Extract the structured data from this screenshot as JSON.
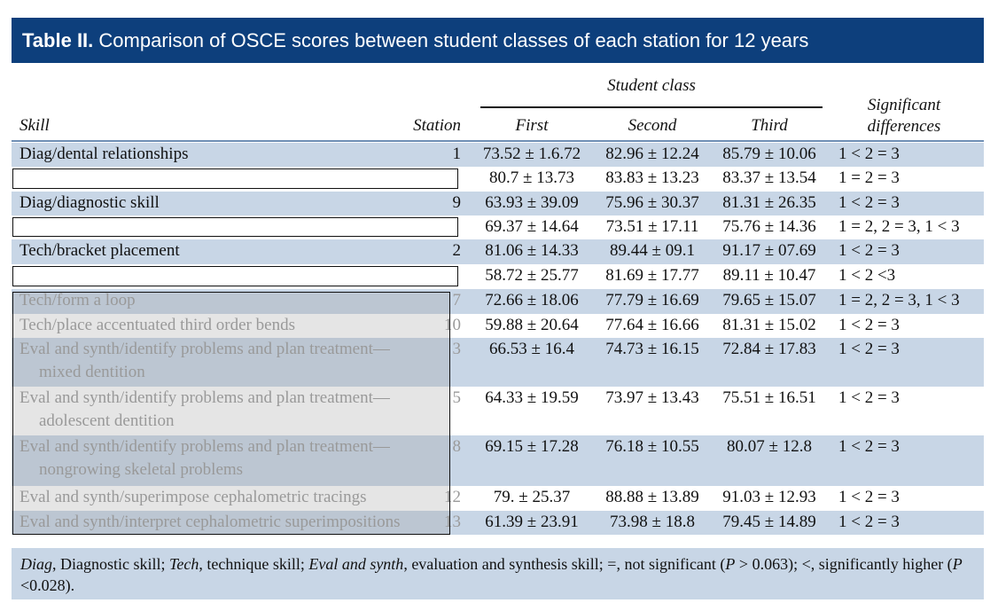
{
  "title": {
    "label": "Table II.",
    "text": "Comparison of OSCE scores between student classes of each station for 12 years"
  },
  "table": {
    "group_header": "Student class",
    "columns": [
      "Skill",
      "Station",
      "First",
      "Second",
      "Third",
      "Significant differences"
    ],
    "rows": [
      [
        "Diag/dental relationships",
        "1",
        "73.52 ± 1.6.72",
        "82.96 ± 12.24",
        "85.79 ± 10.06",
        "1 < 2 = 3"
      ],
      [
        null,
        null,
        "80.7 ± 13.73",
        "83.83 ± 13.23",
        "83.37 ± 13.54",
        "1 = 2 = 3"
      ],
      [
        "Diag/diagnostic skill",
        "9",
        "63.93 ± 39.09",
        "75.96 ± 30.37",
        "81.31 ± 26.35",
        "1 < 2 = 3"
      ],
      [
        null,
        null,
        "69.37 ± 14.64",
        "73.51 ± 17.11",
        "75.76 ± 14.36",
        "1 = 2, 2 = 3, 1 < 3"
      ],
      [
        "Tech/bracket placement",
        "2",
        "81.06 ± 14.33",
        "89.44 ± 09.1",
        "91.17 ± 07.69",
        "1 < 2 = 3"
      ],
      [
        null,
        null,
        "58.72 ± 25.77",
        "81.69 ± 17.77",
        "89.11 ± 10.47",
        "1 < 2 <3"
      ],
      [
        "Tech/form a loop",
        "7",
        "72.66 ± 18.06",
        "77.79 ± 16.69",
        "79.65 ± 15.07",
        "1 = 2, 2 = 3, 1 < 3"
      ],
      [
        "Tech/place accentuated third order bends",
        "10",
        "59.88 ± 20.64",
        "77.64 ± 16.66",
        "81.31 ± 15.02",
        "1 < 2 = 3"
      ],
      [
        "Eval and synth/identify problems and plan treatment—mixed dentition",
        "3",
        "66.53 ± 16.4",
        "74.73 ± 16.15",
        "72.84 ± 17.83",
        "1 < 2 = 3"
      ],
      [
        "Eval and synth/identify problems and plan treatment—adolescent dentition",
        "5",
        "64.33 ± 19.59",
        "73.97 ± 13.43",
        "75.51 ± 16.51",
        "1 < 2 = 3"
      ],
      [
        "Eval and synth/identify problems and plan treatment—nongrowing skeletal problems",
        "8",
        "69.15 ± 17.28",
        "76.18 ± 10.55",
        "80.07 ± 12.8",
        "1 < 2 = 3"
      ],
      [
        "Eval and synth/superimpose cephalometric tracings",
        "12",
        "79. ± 25.37",
        "88.88 ± 13.89",
        "91.03 ± 12.93",
        "1 < 2 = 3"
      ],
      [
        "Eval and synth/interpret cephalometric superimpositions",
        "13",
        "61.39 ± 23.91",
        "73.98 ± 18.8",
        "79.45 ± 14.89",
        "1 < 2 = 3"
      ]
    ]
  },
  "footnote": [
    {
      "text": "Diag",
      "italic": true
    },
    {
      "text": ", Diagnostic skill; ",
      "italic": false
    },
    {
      "text": "Tech",
      "italic": true
    },
    {
      "text": ", technique skill; ",
      "italic": false
    },
    {
      "text": "Eval and synth",
      "italic": true
    },
    {
      "text": ", evaluation and synthesis skill; =, not significant (",
      "italic": false
    },
    {
      "text": "P",
      "italic": true
    },
    {
      "text": " > 0.063); <, significantly higher (",
      "italic": false
    },
    {
      "text": "P",
      "italic": true
    },
    {
      "text": " <0.028).",
      "italic": false
    }
  ]
}
